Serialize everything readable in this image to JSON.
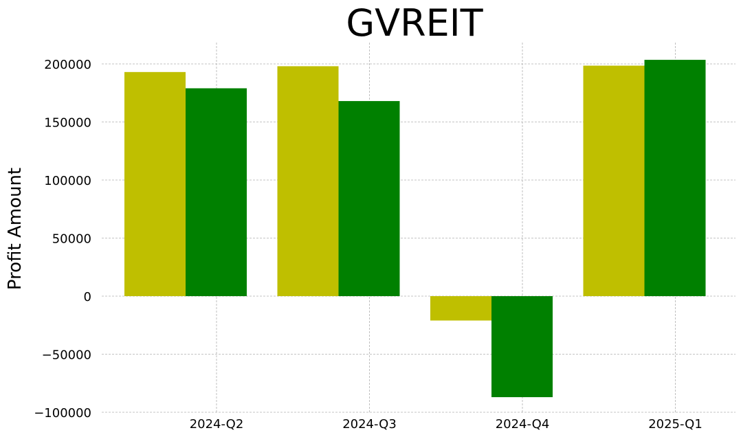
{
  "chart_data": {
    "type": "bar",
    "title": "GVREIT",
    "xlabel": "",
    "ylabel": "Profit Amount",
    "categories": [
      "2024-Q2",
      "2024-Q3",
      "2024-Q4",
      "2025-Q1"
    ],
    "series": [
      {
        "values": [
          193000,
          198000,
          -21000,
          198500
        ],
        "color": "#bfbf00"
      },
      {
        "values": [
          179000,
          168000,
          -87000,
          203500
        ],
        "color": "#008000"
      }
    ],
    "yticks": [
      200000,
      150000,
      100000,
      50000,
      0,
      -50000,
      -100000
    ],
    "ytick_labels": [
      "200000",
      "150000",
      "100000",
      "50000",
      "0",
      "−50000",
      "−100000"
    ],
    "ylim": [
      -100000,
      200000
    ],
    "grid": true,
    "legend": "none"
  }
}
